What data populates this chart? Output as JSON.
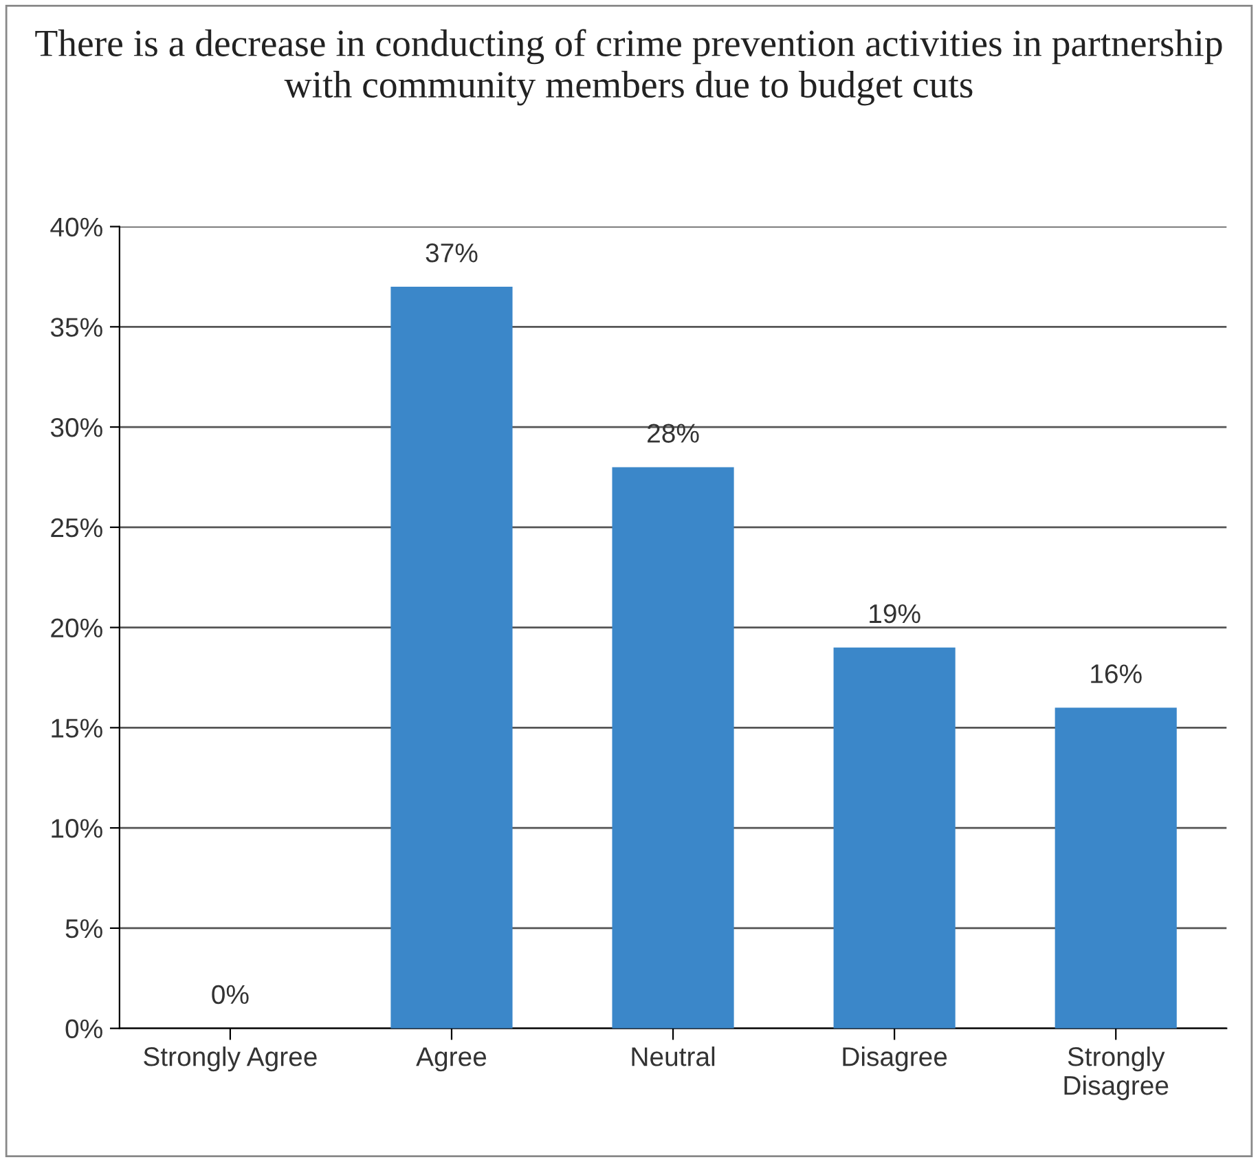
{
  "chart_data": {
    "type": "bar",
    "title": "There is a decrease in conducting of crime prevention activities in partnership with community members due to budget cuts",
    "categories": [
      "Strongly Agree",
      "Agree",
      "Neutral",
      "Disagree",
      "Strongly\nDisagree"
    ],
    "values": [
      0,
      37,
      28,
      19,
      16
    ],
    "value_labels": [
      "0%",
      "37%",
      "28%",
      "19%",
      "16%"
    ],
    "color": "#3b87c9",
    "ylim": [
      0,
      40
    ],
    "yticks": [
      {
        "value": 0,
        "label": "0%"
      },
      {
        "value": 5,
        "label": "5%"
      },
      {
        "value": 10,
        "label": "10%"
      },
      {
        "value": 15,
        "label": "15%"
      },
      {
        "value": 20,
        "label": "20%"
      },
      {
        "value": 25,
        "label": "25%"
      },
      {
        "value": 30,
        "label": "30%"
      },
      {
        "value": 35,
        "label": "35%"
      },
      {
        "value": 40,
        "label": "40%"
      }
    ],
    "grid": "y"
  }
}
